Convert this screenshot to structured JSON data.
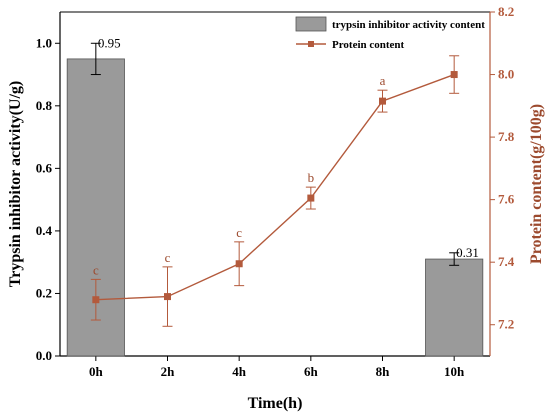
{
  "chart_data": {
    "type": "bar+line",
    "categories": [
      "0h",
      "2h",
      "4h",
      "6h",
      "8h",
      "10h"
    ],
    "xlabel": "Time(h)",
    "ylabel_left": "Trypsin inhibitor activity(U/g)",
    "ylabel_right": "Protein content(g/100g)",
    "ylim_left": [
      0.0,
      1.1
    ],
    "ylim_right": [
      7.1,
      8.2
    ],
    "yticks_left": [
      "0.0",
      "0.2",
      "0.4",
      "0.6",
      "0.8",
      "1.0"
    ],
    "yticks_right": [
      "7.2",
      "7.4",
      "7.6",
      "7.8",
      "8.0",
      "8.2"
    ],
    "bars": {
      "name": "trypsin inhibitor activity content",
      "points": [
        {
          "category": "0h",
          "value": 0.95,
          "error": 0.05,
          "label": "0.95"
        },
        {
          "category": "10h",
          "value": 0.31,
          "error": 0.02,
          "label": "0.31"
        }
      ],
      "color": "#9a9a9a"
    },
    "line": {
      "name": "Protein content",
      "color": "#b35a3c",
      "values": [
        7.28,
        7.29,
        7.395,
        7.605,
        7.915,
        8.0
      ],
      "errors": [
        0.065,
        0.095,
        0.07,
        0.035,
        0.035,
        0.06
      ],
      "letters": [
        "c",
        "c",
        "c",
        "b",
        "a",
        "a"
      ]
    },
    "legend_position": "top-right"
  }
}
